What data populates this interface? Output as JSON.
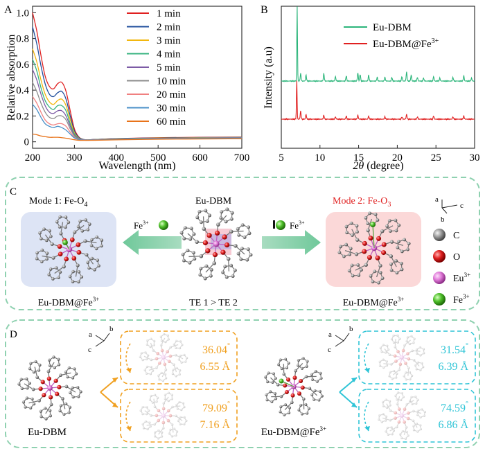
{
  "panel_labels": {
    "a": "A",
    "b": "B",
    "c": "C",
    "d": "D"
  },
  "chart_data": [
    {
      "type": "line",
      "panel": "A",
      "xlabel": "Wavelength (nm)",
      "ylabel": "Relative absorption",
      "xlim": [
        200,
        700
      ],
      "ylim": [
        -0.05,
        1.05
      ],
      "xticks": [
        "200",
        "300",
        "400",
        "500",
        "600",
        "700"
      ],
      "yticks": [
        "0",
        "0.2",
        "0.4",
        "0.6",
        "0.8",
        "1.0"
      ],
      "legend_position": "top-right",
      "x": [
        200,
        210,
        220,
        230,
        240,
        250,
        260,
        270,
        280,
        290,
        300,
        310,
        320,
        330,
        350,
        400,
        500,
        600,
        700
      ],
      "series": [
        {
          "name": "1 min",
          "color": "#e02020",
          "values": [
            1.0,
            0.86,
            0.67,
            0.51,
            0.43,
            0.41,
            0.45,
            0.46,
            0.39,
            0.24,
            0.1,
            0.04,
            0.02,
            0.015,
            0.018,
            0.025,
            0.032,
            0.035,
            0.037
          ]
        },
        {
          "name": "2 min",
          "color": "#1f4e9c",
          "values": [
            0.89,
            0.76,
            0.59,
            0.45,
            0.37,
            0.35,
            0.38,
            0.39,
            0.33,
            0.2,
            0.085,
            0.035,
            0.02,
            0.015,
            0.018,
            0.024,
            0.03,
            0.033,
            0.035
          ]
        },
        {
          "name": "3 min",
          "color": "#f2b70f",
          "values": [
            0.72,
            0.62,
            0.48,
            0.37,
            0.31,
            0.29,
            0.32,
            0.33,
            0.28,
            0.17,
            0.07,
            0.03,
            0.018,
            0.015,
            0.017,
            0.023,
            0.029,
            0.032,
            0.034
          ]
        },
        {
          "name": "4 min",
          "color": "#36b37e",
          "values": [
            0.64,
            0.55,
            0.42,
            0.32,
            0.27,
            0.25,
            0.28,
            0.28,
            0.24,
            0.14,
            0.06,
            0.028,
            0.017,
            0.014,
            0.017,
            0.022,
            0.028,
            0.031,
            0.033
          ]
        },
        {
          "name": "5 min",
          "color": "#7d5ba6",
          "values": [
            0.56,
            0.48,
            0.37,
            0.28,
            0.23,
            0.22,
            0.24,
            0.24,
            0.2,
            0.12,
            0.05,
            0.025,
            0.016,
            0.014,
            0.016,
            0.021,
            0.027,
            0.03,
            0.032
          ]
        },
        {
          "name": "10 min",
          "color": "#8c8c8c",
          "values": [
            0.46,
            0.39,
            0.3,
            0.23,
            0.19,
            0.18,
            0.2,
            0.2,
            0.17,
            0.1,
            0.045,
            0.022,
            0.015,
            0.013,
            0.016,
            0.02,
            0.026,
            0.029,
            0.031
          ]
        },
        {
          "name": "20 min",
          "color": "#f08080",
          "values": [
            0.35,
            0.3,
            0.23,
            0.17,
            0.14,
            0.13,
            0.14,
            0.14,
            0.12,
            0.075,
            0.035,
            0.02,
            0.014,
            0.013,
            0.015,
            0.019,
            0.025,
            0.028,
            0.03
          ]
        },
        {
          "name": "30 min",
          "color": "#4a90c8",
          "values": [
            0.29,
            0.25,
            0.19,
            0.14,
            0.12,
            0.11,
            0.12,
            0.11,
            0.09,
            0.06,
            0.03,
            0.018,
            0.013,
            0.012,
            0.014,
            0.018,
            0.024,
            0.027,
            0.029
          ]
        },
        {
          "name": "60 min",
          "color": "#e8731a",
          "values": [
            0.06,
            0.055,
            0.045,
            0.04,
            0.035,
            0.035,
            0.035,
            0.032,
            0.028,
            0.022,
            0.016,
            0.012,
            0.011,
            0.011,
            0.012,
            0.015,
            0.02,
            0.022,
            0.024
          ]
        }
      ]
    },
    {
      "type": "line",
      "panel": "B",
      "xlabel": "2θ (degree)",
      "xlabel_symbol": "2θ",
      "xlabel_unit": "(degree)",
      "ylabel": "Intensity (a.u)",
      "xlim": [
        5,
        30
      ],
      "xticks": [
        "5",
        "10",
        "15",
        "20",
        "25",
        "30"
      ],
      "legend_position": "top-right",
      "series": [
        {
          "name": "Eu-DBM",
          "color": "#2bb57a",
          "baseline": 1.0,
          "peaks": [
            [
              7.05,
              1.0
            ],
            [
              7.5,
              0.1
            ],
            [
              8.2,
              0.08
            ],
            [
              10.5,
              0.1
            ],
            [
              12.0,
              0.06
            ],
            [
              13.4,
              0.07
            ],
            [
              14.9,
              0.11
            ],
            [
              15.2,
              0.09
            ],
            [
              16.3,
              0.08
            ],
            [
              17.4,
              0.05
            ],
            [
              18.4,
              0.05
            ],
            [
              19.3,
              0.05
            ],
            [
              20.6,
              0.06
            ],
            [
              21.2,
              0.12
            ],
            [
              21.8,
              0.08
            ],
            [
              22.6,
              0.05
            ],
            [
              23.4,
              0.04
            ],
            [
              24.7,
              0.06
            ],
            [
              25.5,
              0.04
            ],
            [
              27.2,
              0.05
            ],
            [
              28.6,
              0.07
            ],
            [
              29.6,
              0.04
            ]
          ]
        },
        {
          "name": "Eu-DBM@Fe³⁺",
          "name_base": "Eu-DBM@Fe",
          "name_sup": "3+",
          "color": "#e02020",
          "baseline": 0.0,
          "peaks": [
            [
              7.0,
              0.5
            ],
            [
              7.5,
              0.1
            ],
            [
              8.2,
              0.06
            ],
            [
              10.5,
              0.05
            ],
            [
              12.0,
              0.03
            ],
            [
              13.4,
              0.04
            ],
            [
              14.9,
              0.05
            ],
            [
              16.3,
              0.04
            ],
            [
              18.4,
              0.03
            ],
            [
              20.6,
              0.03
            ],
            [
              21.2,
              0.06
            ],
            [
              22.6,
              0.03
            ],
            [
              24.7,
              0.04
            ],
            [
              27.2,
              0.03
            ],
            [
              28.6,
              0.04
            ]
          ]
        }
      ]
    }
  ],
  "panel_c": {
    "mode1": {
      "prefix": "Mode 1: Fe-O",
      "sub": "4"
    },
    "mode2": {
      "prefix": "Mode 2: Fe-O",
      "sub": "3"
    },
    "center_title": "Eu-DBM",
    "te_label": "TE 1 > TE 2",
    "left_caption": {
      "base": "Eu-DBM@Fe",
      "sup": "3+"
    },
    "right_caption": {
      "base": "Eu-DBM@Fe",
      "sup": "3+"
    },
    "fe_arrow_left": {
      "base": "Fe",
      "sup": "3+"
    },
    "fe_arrow_right": {
      "base": "Fe",
      "sup": "3+"
    },
    "axes": {
      "a": "a",
      "b": "b",
      "c": "c"
    },
    "legend": [
      {
        "label": "C",
        "sup": "",
        "color": "#8a8a8a"
      },
      {
        "label": "O",
        "sup": "",
        "color": "#d92020"
      },
      {
        "label": "Eu",
        "sup": "3+",
        "color": "#e07ad8"
      },
      {
        "label": "Fe",
        "sup": "3+",
        "color": "#4fc02a"
      }
    ]
  },
  "panel_d": {
    "left_caption": "Eu-DBM",
    "right_caption": {
      "base": "Eu-DBM@Fe",
      "sup": "3+"
    },
    "axes_left": {
      "a": "a",
      "b": "b",
      "c": "c"
    },
    "axes_right": {
      "a": "a",
      "b": "b",
      "c": "c"
    },
    "boxes": [
      {
        "angle": "36.04",
        "deg": "°",
        "distance": "6.55 Å",
        "color": "#f0a020"
      },
      {
        "angle": "79.09",
        "deg": "°",
        "distance": "7.16 Å",
        "color": "#f0a020"
      },
      {
        "angle": "31.54",
        "deg": "°",
        "distance": "6.39 Å",
        "color": "#2ec4d6"
      },
      {
        "angle": "74.59",
        "deg": "°",
        "distance": "6.86 Å",
        "color": "#2ec4d6"
      }
    ]
  }
}
